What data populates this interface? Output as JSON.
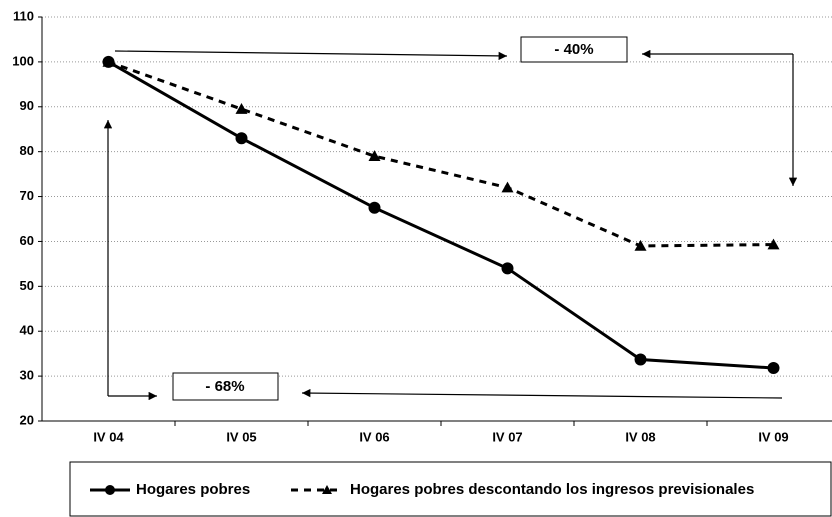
{
  "chart_data": {
    "type": "line",
    "categories": [
      "IV 04",
      "IV 05",
      "IV 06",
      "IV 07",
      "IV 08",
      "IV 09"
    ],
    "series": [
      {
        "name": "Hogares pobres",
        "color": "#000000",
        "values": [
          100,
          83,
          67.5,
          54,
          33.7,
          31.8
        ]
      },
      {
        "name": "Hogares pobres descontando los ingresos previsionales",
        "color": "#000000",
        "values": [
          100,
          89.5,
          79,
          72,
          59,
          59.3
        ]
      }
    ],
    "ylim": [
      20,
      110
    ],
    "yticks": [
      20,
      30,
      40,
      50,
      60,
      70,
      80,
      90,
      100,
      110
    ],
    "grid": true,
    "annotations": [
      "- 40%",
      "- 68%"
    ]
  }
}
